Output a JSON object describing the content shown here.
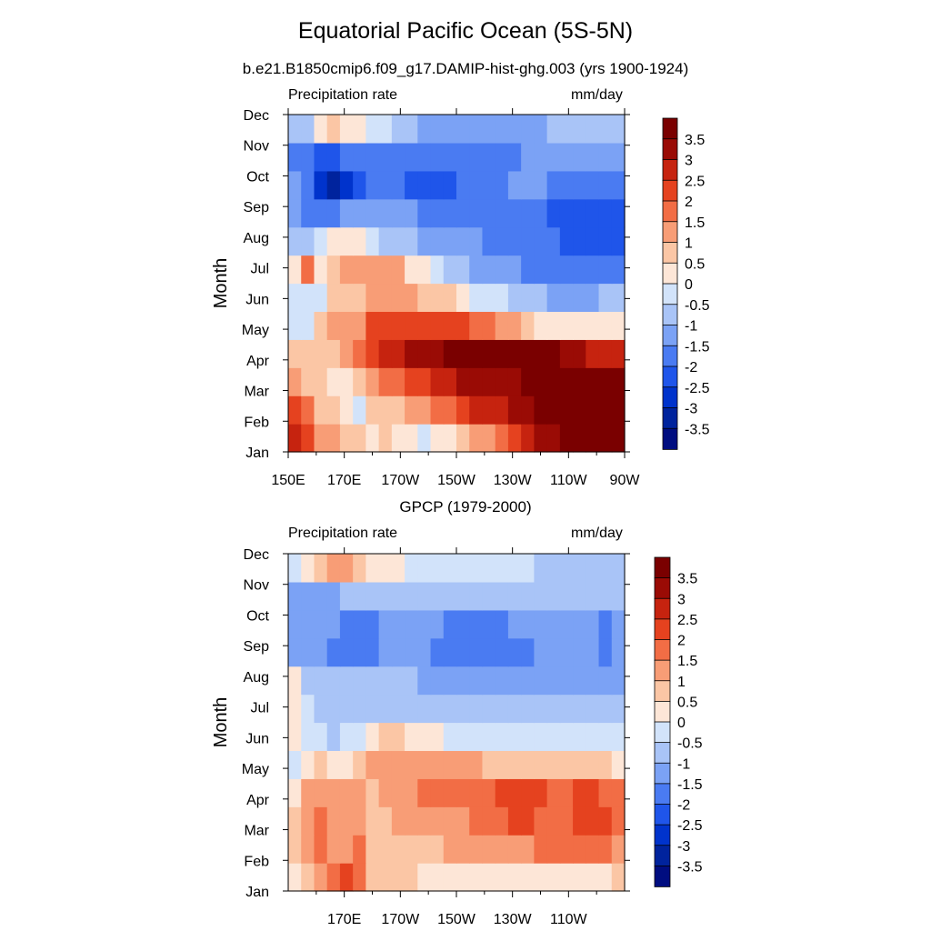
{
  "title": "Equatorial Pacific Ocean (5S-5N)",
  "colors": {
    "palette": [
      "#000d80",
      "#00239d",
      "#0033cc",
      "#1f55ea",
      "#4a7bf2",
      "#7ba2f5",
      "#a9c4f7",
      "#d2e3fa",
      "#fde6d7",
      "#fbc6a5",
      "#f89d76",
      "#f26d45",
      "#e5421f",
      "#c6230f",
      "#9a0b05",
      "#7a0000"
    ]
  },
  "chart_data": [
    {
      "type": "heatmap",
      "subtitle": "b.e21.B1850cmip6.f09_g17.DAMIP-hist-ghg.003 (yrs 1900-1924)",
      "left_label": "Precipitation rate",
      "right_label": "mm/day",
      "ylabel": "Month",
      "xlabel": "",
      "x_ticks": [
        "150E",
        "170E",
        "170W",
        "150W",
        "130W",
        "110W",
        "90W"
      ],
      "y_ticks": [
        "Jan",
        "Feb",
        "Mar",
        "Apr",
        "May",
        "Jun",
        "Jul",
        "Aug",
        "Sep",
        "Oct",
        "Nov",
        "Dec"
      ],
      "x_range": [
        "150E",
        "90W"
      ],
      "colorbar_labels": [
        "3.5",
        "3",
        "2.5",
        "2",
        "1.5",
        "1",
        "0.5",
        "0",
        "-0.5",
        "-1",
        "-1.5",
        "-2",
        "-2.5",
        "-3",
        "-3.5"
      ],
      "levels": [
        -3.5,
        -3,
        -2.5,
        -2,
        -1.5,
        -1,
        -0.5,
        0,
        0.5,
        1,
        1.5,
        2,
        2.5,
        3,
        3.5
      ],
      "grid": [
        [
          2.5,
          2.0,
          1.2,
          1.2,
          0.7,
          0.6,
          0.4,
          0.6,
          0.3,
          0.2,
          -0.2,
          0.2,
          0.3,
          0.6,
          1.0,
          1.3,
          1.8,
          2.2,
          2.8,
          3.1,
          3.3,
          3.5,
          3.6,
          3.7,
          3.7,
          3.6
        ],
        [
          2.1,
          1.6,
          0.9,
          0.7,
          0.4,
          -0.1,
          0.5,
          0.6,
          0.9,
          1.0,
          1.3,
          1.7,
          1.8,
          2.2,
          2.5,
          2.8,
          2.9,
          3.2,
          3.4,
          3.5,
          3.5,
          3.6,
          3.6,
          3.7,
          3.8,
          3.8
        ],
        [
          1.4,
          0.9,
          0.6,
          0.3,
          0.3,
          0.6,
          1.0,
          1.5,
          1.8,
          2.1,
          2.4,
          2.8,
          2.8,
          3.0,
          3.1,
          3.2,
          3.2,
          3.4,
          3.6,
          3.6,
          3.7,
          3.8,
          3.9,
          4.1,
          4.2,
          4.1
        ],
        [
          0.6,
          0.7,
          0.9,
          0.9,
          1.2,
          1.5,
          2.0,
          2.5,
          2.7,
          3.0,
          3.2,
          3.3,
          3.5,
          3.6,
          3.7,
          3.9,
          3.9,
          3.8,
          3.8,
          3.7,
          3.5,
          3.2,
          3.0,
          2.8,
          2.7,
          2.6
        ],
        [
          -0.5,
          -0.3,
          0.8,
          1.2,
          1.2,
          1.3,
          2.0,
          2.1,
          2.1,
          2.2,
          2.2,
          2.2,
          2.1,
          2.0,
          1.8,
          1.6,
          1.2,
          1.0,
          0.7,
          0.4,
          0.2,
          0.1,
          0.1,
          0.1,
          0.3,
          0.4
        ],
        [
          -0.2,
          -0.5,
          -0.1,
          0.5,
          0.8,
          0.9,
          1.2,
          1.3,
          1.2,
          1.0,
          0.9,
          0.9,
          0.5,
          0.0,
          -0.3,
          -0.4,
          -0.5,
          -0.7,
          -0.8,
          -0.9,
          -1.1,
          -1.2,
          -1.1,
          -1.1,
          -1.0,
          -0.9
        ],
        [
          0.3,
          1.5,
          0.4,
          0.8,
          1.3,
          1.3,
          1.2,
          1.0,
          1.0,
          0.4,
          0.0,
          -0.5,
          -0.7,
          -0.9,
          -1.1,
          -1.3,
          -1.4,
          -1.5,
          -1.6,
          -1.7,
          -1.8,
          -1.9,
          -1.7,
          -1.9,
          -1.8,
          -1.7
        ],
        [
          -0.6,
          -0.6,
          -0.3,
          0.0,
          0.4,
          0.2,
          -0.4,
          -0.6,
          -0.7,
          -0.9,
          -1.1,
          -1.2,
          -1.3,
          -1.5,
          -1.5,
          -1.6,
          -1.6,
          -1.7,
          -1.8,
          -1.9,
          -2.0,
          -2.2,
          -2.3,
          -2.1,
          -2.2,
          -2.1
        ],
        [
          -1.1,
          -1.7,
          -1.8,
          -1.6,
          -1.5,
          -1.4,
          -1.4,
          -1.4,
          -1.4,
          -1.5,
          -1.6,
          -1.6,
          -1.6,
          -1.7,
          -1.7,
          -1.8,
          -1.9,
          -1.8,
          -1.9,
          -2.0,
          -2.1,
          -2.2,
          -2.3,
          -2.4,
          -2.3,
          -2.2
        ],
        [
          -1.4,
          -2.0,
          -2.6,
          -3.1,
          -2.7,
          -2.2,
          -2.0,
          -2.0,
          -2.0,
          -2.1,
          -2.2,
          -2.1,
          -2.1,
          -2.0,
          -1.8,
          -1.7,
          -1.6,
          -1.4,
          -1.4,
          -1.5,
          -1.7,
          -1.8,
          -1.9,
          -1.9,
          -1.8,
          -1.7
        ],
        [
          -1.7,
          -2.0,
          -2.1,
          -2.1,
          -2.0,
          -1.9,
          -1.8,
          -1.8,
          -1.9,
          -2.0,
          -2.0,
          -2.0,
          -1.8,
          -1.8,
          -1.8,
          -1.8,
          -1.7,
          -1.6,
          -1.5,
          -1.4,
          -1.4,
          -1.4,
          -1.3,
          -1.3,
          -1.3,
          -1.3
        ],
        [
          -1.0,
          -0.6,
          0.1,
          0.7,
          0.4,
          0.2,
          -0.2,
          -0.5,
          -0.7,
          -0.9,
          -1.1,
          -1.2,
          -1.2,
          -1.3,
          -1.3,
          -1.3,
          -1.3,
          -1.3,
          -1.2,
          -1.1,
          -1.0,
          -0.9,
          -0.8,
          -0.7,
          -0.7,
          -0.6
        ]
      ]
    },
    {
      "type": "heatmap",
      "subtitle": "GPCP (1979-2000)",
      "left_label": "Precipitation rate",
      "right_label": "mm/day",
      "ylabel": "Month",
      "xlabel": "",
      "x_ticks": [
        "170E",
        "170W",
        "150W",
        "130W",
        "110W"
      ],
      "y_ticks": [
        "Jan",
        "Feb",
        "Mar",
        "Apr",
        "May",
        "Jun",
        "Jul",
        "Aug",
        "Sep",
        "Oct",
        "Nov",
        "Dec"
      ],
      "x_range": [
        "150E",
        "90W"
      ],
      "colorbar_labels": [
        "3.5",
        "3",
        "2.5",
        "2",
        "1.5",
        "1",
        "0.5",
        "0",
        "-0.5",
        "-1",
        "-1.5",
        "-2",
        "-2.5",
        "-3",
        "-3.5"
      ],
      "levels": [
        -3.5,
        -3,
        -2.5,
        -2,
        -1.5,
        -1,
        -0.5,
        0,
        0.5,
        1,
        1.5,
        2,
        2.5,
        3,
        3.5
      ],
      "grid": [
        [
          0.3,
          0.8,
          1.3,
          1.6,
          2.0,
          1.6,
          0.9,
          0.7,
          0.6,
          0.5,
          0.4,
          0.3,
          0.2,
          0.2,
          0.1,
          0.1,
          0.2,
          0.2,
          0.2,
          0.1,
          0.2,
          0.2,
          0.3,
          0.4,
          0.4,
          0.5
        ],
        [
          0.8,
          1.2,
          1.7,
          1.0,
          1.3,
          1.5,
          0.7,
          0.6,
          0.6,
          0.7,
          0.8,
          0.9,
          1.0,
          1.1,
          1.1,
          1.2,
          1.2,
          1.3,
          1.4,
          1.5,
          1.6,
          1.6,
          1.7,
          1.6,
          1.5,
          1.4
        ],
        [
          0.6,
          1.4,
          1.6,
          1.3,
          1.4,
          1.3,
          0.7,
          0.9,
          1.0,
          1.1,
          1.2,
          1.3,
          1.4,
          1.4,
          1.5,
          1.5,
          1.7,
          2.0,
          2.1,
          1.8,
          1.7,
          1.8,
          2.1,
          2.2,
          2.0,
          1.6
        ],
        [
          0.4,
          1.3,
          1.2,
          1.0,
          1.1,
          1.0,
          0.9,
          1.0,
          1.1,
          1.3,
          1.5,
          1.6,
          1.8,
          1.9,
          1.9,
          1.9,
          2.0,
          2.2,
          2.2,
          2.0,
          1.9,
          1.9,
          2.2,
          2.1,
          1.9,
          1.6
        ],
        [
          -0.2,
          0.3,
          0.6,
          0.4,
          0.3,
          0.5,
          1.0,
          1.2,
          1.2,
          1.2,
          1.2,
          1.2,
          1.2,
          1.2,
          1.0,
          0.9,
          0.8,
          0.7,
          0.6,
          0.5,
          0.5,
          0.5,
          0.5,
          0.5,
          0.5,
          0.4
        ],
        [
          0.1,
          -0.2,
          -0.4,
          -0.6,
          -0.5,
          -0.3,
          0.3,
          0.5,
          0.5,
          0.3,
          0.2,
          0.0,
          -0.1,
          -0.2,
          -0.3,
          -0.3,
          -0.4,
          -0.4,
          -0.5,
          -0.5,
          -0.5,
          -0.5,
          -0.5,
          -0.5,
          -0.4,
          -0.4
        ],
        [
          0.2,
          -0.3,
          -0.7,
          -0.8,
          -0.7,
          -0.6,
          -0.7,
          -0.7,
          -0.7,
          -0.7,
          -0.8,
          -0.8,
          -0.8,
          -0.8,
          -0.8,
          -0.8,
          -0.8,
          -0.8,
          -0.8,
          -0.8,
          -0.8,
          -0.8,
          -0.8,
          -0.9,
          -0.9,
          -0.8
        ],
        [
          0.1,
          -0.6,
          -0.9,
          -0.9,
          -0.9,
          -0.8,
          -0.8,
          -0.9,
          -1.0,
          -1.0,
          -1.1,
          -1.2,
          -1.2,
          -1.2,
          -1.2,
          -1.2,
          -1.1,
          -1.1,
          -1.1,
          -1.1,
          -1.1,
          -1.1,
          -1.1,
          -1.2,
          -1.4,
          -1.3
        ],
        [
          -1.5,
          -1.2,
          -1.4,
          -1.6,
          -1.9,
          -1.8,
          -1.6,
          -1.5,
          -1.4,
          -1.4,
          -1.5,
          -1.6,
          -1.6,
          -1.6,
          -1.6,
          -1.6,
          -1.6,
          -1.6,
          -1.6,
          -1.5,
          -1.4,
          -1.3,
          -1.4,
          -1.5,
          -1.6,
          -1.5
        ],
        [
          -1.3,
          -1.2,
          -1.4,
          -1.5,
          -1.8,
          -1.7,
          -1.6,
          -1.4,
          -1.3,
          -1.3,
          -1.4,
          -1.5,
          -1.6,
          -1.6,
          -1.6,
          -1.6,
          -1.6,
          -1.5,
          -1.4,
          -1.3,
          -1.2,
          -1.2,
          -1.4,
          -1.5,
          -1.6,
          -1.5
        ],
        [
          -1.1,
          -1.1,
          -1.2,
          -1.1,
          -1.0,
          -0.9,
          -0.9,
          -0.9,
          -1.0,
          -1.0,
          -1.0,
          -1.0,
          -1.0,
          -0.9,
          -0.8,
          -0.8,
          -0.8,
          -0.8,
          -0.8,
          -0.8,
          -0.8,
          -0.9,
          -0.9,
          -0.9,
          -1.0,
          -1.0
        ],
        [
          -0.5,
          0.3,
          0.8,
          1.1,
          1.0,
          0.7,
          0.4,
          0.2,
          0.0,
          -0.1,
          -0.2,
          -0.3,
          -0.3,
          -0.4,
          -0.4,
          -0.4,
          -0.4,
          -0.5,
          -0.5,
          -0.6,
          -0.6,
          -0.6,
          -0.6,
          -0.6,
          -0.6,
          -0.6
        ]
      ]
    }
  ]
}
